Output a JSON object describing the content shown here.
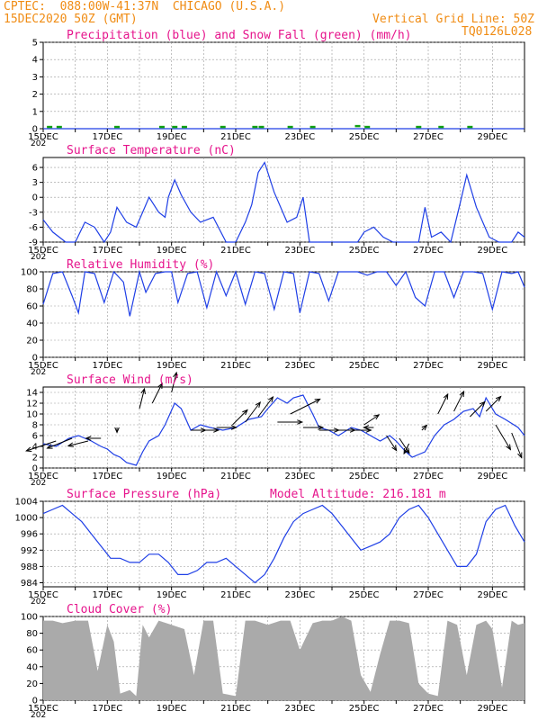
{
  "header": {
    "line1_left": "CPTEC:  088:00W-41:37N  CHICAGO (U.S.A.)",
    "line2_left": "15DEC2020 50Z (GMT)",
    "line2_right": "Vertical Grid Line: 50Z",
    "line3_right": "TQ0126L028"
  },
  "colors": {
    "orange": "#f08c14",
    "magenta": "#e6148c",
    "blue": "#1f3fe6",
    "green": "#10a010",
    "gray": "#aaaaaa"
  },
  "x_axis": {
    "tick_labels": [
      "15DEC",
      "17DEC",
      "19DEC",
      "21DEC",
      "23DEC",
      "25DEC",
      "27DEC",
      "29DEC"
    ],
    "year_stub": "202",
    "start_day": 15,
    "end_day": 30
  },
  "chart_data": [
    {
      "type": "line",
      "title": "Precipitation (blue) and Snow Fall (green) (mm/h)",
      "ylim": [
        0,
        5
      ],
      "yticks": [
        "0",
        "1",
        "2",
        "3",
        "4",
        "5"
      ],
      "series": [
        {
          "color": "blue",
          "x": [
            15,
            30
          ],
          "y": [
            0,
            0
          ]
        },
        {
          "color": "green",
          "x": [
            15.2,
            15.5,
            17.3,
            18.7,
            19.1,
            19.4,
            20.6,
            21.6,
            21.8,
            22.7,
            23.4,
            24.8,
            25.1,
            26.7,
            27.4,
            28.3
          ],
          "y": [
            0.1,
            0.1,
            0.1,
            0.1,
            0.1,
            0.1,
            0.1,
            0.1,
            0.1,
            0.1,
            0.1,
            0.15,
            0.1,
            0.1,
            0.1,
            0.1
          ]
        }
      ]
    },
    {
      "type": "line",
      "title": "Surface Temperature (nC)",
      "ylim": [
        -9,
        8
      ],
      "yticks": [
        "-9",
        "-6",
        "-3",
        "0",
        "3",
        "6"
      ],
      "series": [
        {
          "color": "blue",
          "x": [
            15.0,
            15.3,
            15.7,
            16.0,
            16.3,
            16.6,
            16.9,
            17.1,
            17.3,
            17.6,
            17.9,
            18.1,
            18.3,
            18.6,
            18.8,
            18.9,
            19.1,
            19.3,
            19.6,
            19.9,
            20.3,
            20.7,
            21.0,
            21.3,
            21.5,
            21.7,
            21.9,
            22.2,
            22.6,
            22.9,
            23.1,
            23.3,
            23.6,
            23.9,
            24.2,
            24.4,
            24.8,
            25.0,
            25.3,
            25.6,
            25.9,
            26.2,
            26.5,
            26.7,
            26.9,
            27.1,
            27.4,
            27.7,
            28.0,
            28.2,
            28.5,
            28.9,
            29.2,
            29.6,
            29.8,
            30.0
          ],
          "y": [
            -4.5,
            -7,
            -9.5,
            -9,
            -5,
            -6,
            -9,
            -7,
            -2,
            -5,
            -6,
            -3,
            0,
            -3,
            -4,
            0,
            3.5,
            0.5,
            -3,
            -5,
            -4,
            -9,
            -9,
            -5,
            -1.5,
            5,
            7,
            1,
            -5,
            -4,
            0,
            -9,
            -9,
            -9,
            -9.5,
            -9,
            -9,
            -7,
            -6,
            -8,
            -9.5,
            -9,
            -9,
            -9,
            -2,
            -8,
            -7,
            -9,
            -1,
            4.5,
            -2,
            -8,
            -9,
            -9.5,
            -7,
            -8
          ]
        }
      ]
    },
    {
      "type": "line",
      "title": "Relative Humidity (%)",
      "ylim": [
        0,
        100
      ],
      "yticks": [
        "0",
        "20",
        "40",
        "60",
        "80",
        "100"
      ],
      "series": [
        {
          "color": "blue",
          "x": [
            15.0,
            15.3,
            15.6,
            15.9,
            16.1,
            16.3,
            16.6,
            16.9,
            17.2,
            17.5,
            17.7,
            18.0,
            18.2,
            18.5,
            18.8,
            19.0,
            19.2,
            19.5,
            19.8,
            20.1,
            20.4,
            20.7,
            21.0,
            21.3,
            21.6,
            21.9,
            22.2,
            22.5,
            22.8,
            23.0,
            23.3,
            23.6,
            23.9,
            24.2,
            24.5,
            24.8,
            25.1,
            25.4,
            25.7,
            26.0,
            26.3,
            26.6,
            26.9,
            27.2,
            27.5,
            27.8,
            28.1,
            28.4,
            28.7,
            29.0,
            29.3,
            29.6,
            29.8,
            30.0
          ],
          "y": [
            62,
            98,
            100,
            72,
            52,
            100,
            98,
            64,
            100,
            88,
            48,
            100,
            76,
            98,
            100,
            100,
            64,
            98,
            100,
            58,
            100,
            72,
            100,
            62,
            100,
            98,
            56,
            100,
            98,
            52,
            100,
            98,
            66,
            100,
            100,
            100,
            96,
            100,
            100,
            84,
            100,
            70,
            60,
            100,
            100,
            70,
            100,
            100,
            98,
            56,
            100,
            98,
            100,
            82
          ]
        }
      ]
    },
    {
      "type": "line",
      "title": "Surface Wind (m/s)",
      "ylim": [
        0,
        15
      ],
      "yticks": [
        "0",
        "2",
        "4",
        "6",
        "8",
        "10",
        "12",
        "14"
      ],
      "series": [
        {
          "color": "blue",
          "x": [
            15.0,
            15.4,
            15.8,
            16.1,
            16.5,
            16.8,
            17.0,
            17.2,
            17.4,
            17.6,
            17.9,
            18.1,
            18.3,
            18.6,
            18.8,
            19.1,
            19.3,
            19.6,
            19.9,
            20.2,
            20.6,
            21.0,
            21.4,
            21.8,
            22.0,
            22.3,
            22.6,
            22.8,
            23.1,
            23.4,
            23.6,
            23.9,
            24.2,
            24.6,
            24.9,
            25.2,
            25.5,
            25.8,
            26.0,
            26.3,
            26.5,
            26.7,
            26.9,
            27.2,
            27.5,
            27.8,
            28.1,
            28.4,
            28.6,
            28.8,
            29.1,
            29.4,
            29.8,
            30.0
          ],
          "y": [
            4.5,
            4,
            5.5,
            6,
            5,
            4,
            3.5,
            2.5,
            2,
            1,
            0.5,
            3,
            5,
            6,
            8,
            12,
            11,
            7,
            8,
            7.5,
            7,
            7.5,
            9,
            9.5,
            11,
            13,
            12,
            13,
            13.5,
            10,
            7.5,
            7,
            6,
            7.5,
            7,
            6,
            5,
            6,
            5,
            3,
            2,
            2.5,
            3,
            6,
            8,
            9,
            10.5,
            11,
            9.5,
            13,
            10,
            9,
            7.5,
            6
          ]
        }
      ],
      "arrows": {
        "x": [
          15.4,
          15.9,
          16.4,
          16.8,
          17.3,
          18.0,
          18.4,
          19.0,
          19.6,
          20.0,
          20.4,
          20.9,
          21.3,
          21.7,
          22.3,
          22.7,
          23.1,
          23.6,
          24.1,
          24.6,
          25.0,
          25.3,
          25.7,
          26.1,
          26.4,
          26.8,
          27.3,
          27.8,
          28.3,
          28.8,
          29.1,
          29.6
        ],
        "y": [
          5,
          5.5,
          5,
          5.5,
          7.5,
          11,
          12,
          14,
          7,
          7,
          7.5,
          8,
          8.5,
          9.5,
          8.5,
          10,
          7.5,
          7,
          7,
          7,
          8,
          7.5,
          6,
          5.5,
          4.5,
          7,
          10,
          10.5,
          9.5,
          10.5,
          8,
          6.5
        ],
        "u": [
          -6,
          -5,
          -4,
          -3,
          0,
          1,
          2,
          1,
          3,
          3,
          4,
          3,
          3,
          3,
          5,
          6,
          4,
          4,
          4,
          4,
          3,
          -2,
          2,
          2,
          -1,
          1,
          2,
          2,
          3,
          3,
          3,
          2
        ],
        "v": [
          -2,
          -2,
          -1,
          0,
          -1,
          4,
          4,
          4,
          0,
          0,
          0,
          3,
          4,
          4,
          0,
          3,
          0,
          0,
          0,
          0,
          2,
          0,
          -3,
          -3,
          -2,
          1,
          4,
          4,
          3,
          3,
          -5,
          -5
        ]
      }
    },
    {
      "type": "line",
      "title": "Surface Pressure (hPa)",
      "annotation": "Model Altitude: 216.181  m",
      "ylim": [
        983,
        1004
      ],
      "yticks": [
        "984",
        "988",
        "992",
        "996",
        "1000",
        "1004"
      ],
      "series": [
        {
          "color": "blue",
          "x": [
            15.0,
            15.3,
            15.6,
            15.9,
            16.2,
            16.5,
            16.8,
            17.1,
            17.4,
            17.7,
            18.0,
            18.3,
            18.6,
            18.9,
            19.2,
            19.5,
            19.8,
            20.1,
            20.4,
            20.7,
            21.0,
            21.3,
            21.6,
            21.9,
            22.2,
            22.5,
            22.8,
            23.1,
            23.4,
            23.7,
            24.0,
            24.3,
            24.6,
            24.9,
            25.2,
            25.5,
            25.8,
            26.1,
            26.4,
            26.7,
            27.0,
            27.3,
            27.6,
            27.9,
            28.2,
            28.5,
            28.8,
            29.1,
            29.4,
            29.7,
            30.0
          ],
          "y": [
            1001,
            1002,
            1003,
            1001,
            999,
            996,
            993,
            990,
            990,
            989,
            989,
            991,
            991,
            989,
            986,
            986,
            987,
            989,
            989,
            990,
            988,
            986,
            984,
            986,
            990,
            995,
            999,
            1001,
            1002,
            1003,
            1001,
            998,
            995,
            992,
            993,
            994,
            996,
            1000,
            1002,
            1003,
            1000,
            996,
            992,
            988,
            988,
            991,
            999,
            1002,
            1003,
            998,
            994
          ]
        }
      ]
    },
    {
      "type": "area",
      "title": "Cloud Cover (%)",
      "ylim": [
        0,
        100
      ],
      "yticks": [
        "0",
        "20",
        "40",
        "60",
        "80",
        "100"
      ],
      "series": [
        {
          "color": "gray",
          "x": [
            15.0,
            15.3,
            15.6,
            16.0,
            16.4,
            16.7,
            17.0,
            17.2,
            17.4,
            17.7,
            17.9,
            18.1,
            18.3,
            18.6,
            19.0,
            19.4,
            19.7,
            20.0,
            20.3,
            20.6,
            21.0,
            21.3,
            21.6,
            22.0,
            22.4,
            22.7,
            23.0,
            23.4,
            23.7,
            24.0,
            24.3,
            24.6,
            24.9,
            25.2,
            25.5,
            25.8,
            26.1,
            26.4,
            26.7,
            27.0,
            27.3,
            27.6,
            27.9,
            28.2,
            28.5,
            28.8,
            29.0,
            29.3,
            29.6,
            29.8,
            30.0
          ],
          "y": [
            95,
            95,
            92,
            95,
            95,
            35,
            90,
            70,
            8,
            12,
            5,
            90,
            75,
            95,
            90,
            85,
            30,
            95,
            95,
            8,
            5,
            95,
            95,
            90,
            95,
            95,
            60,
            92,
            95,
            95,
            100,
            95,
            30,
            10,
            55,
            95,
            95,
            92,
            20,
            8,
            5,
            95,
            90,
            30,
            90,
            95,
            85,
            15,
            95,
            90,
            92
          ]
        }
      ]
    }
  ]
}
